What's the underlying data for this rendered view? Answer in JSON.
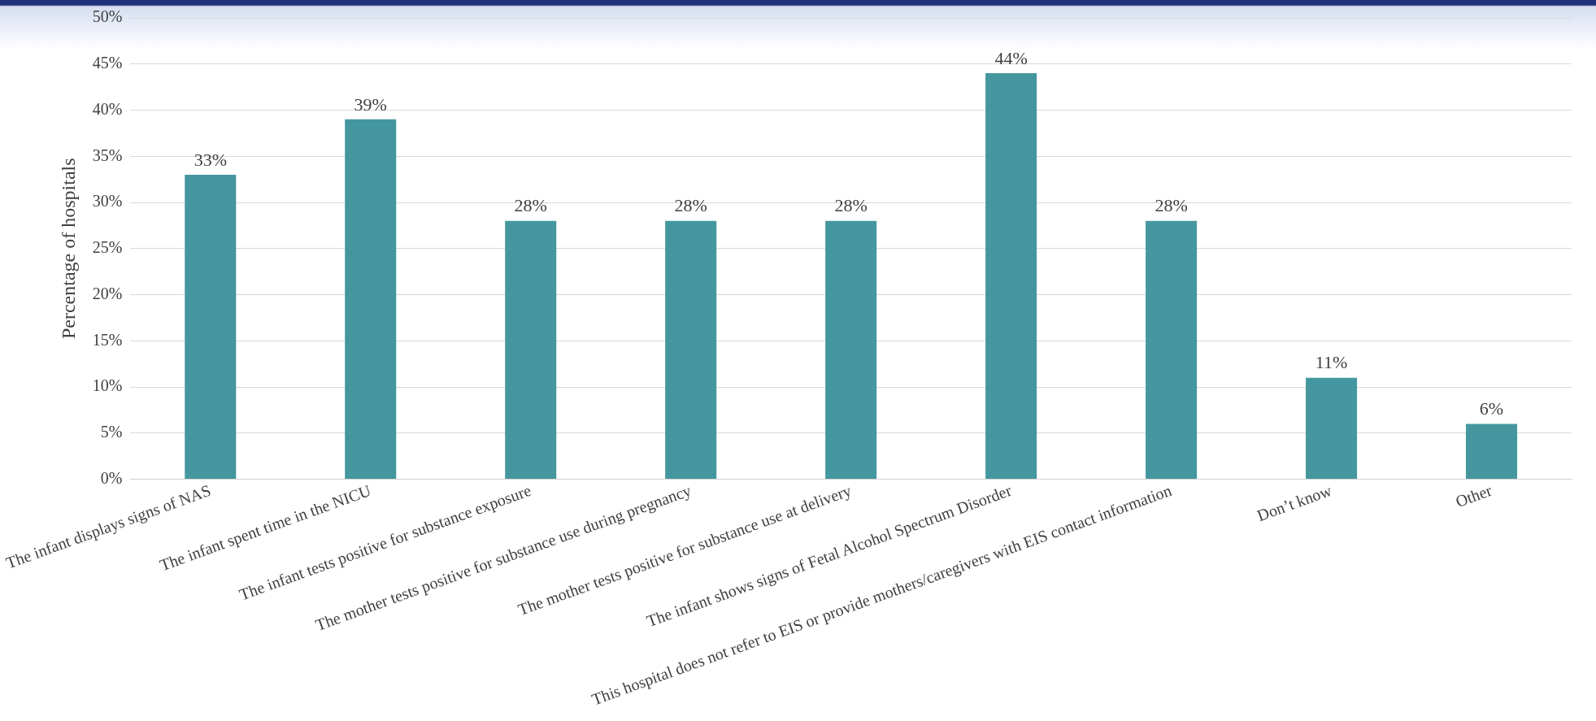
{
  "chart_data": {
    "type": "bar",
    "ylabel": "Percentage of hospitals",
    "categories": [
      "The infant displays signs of NAS",
      "The infant spent time in the NICU",
      "The infant tests positive for substance exposure",
      "The mother tests positive for substance use during pregnancy",
      "The mother tests positive for substance use at delivery",
      "The infant shows signs of Fetal Alcohol Spectrum Disorder",
      "This hospital does not refer to EIS or provide mothers/caregivers with EIS contact information",
      "Don’t know",
      "Other"
    ],
    "values": [
      33,
      39,
      28,
      28,
      28,
      44,
      28,
      11,
      6
    ],
    "color": "#44979f",
    "value_labels": [
      "33%",
      "39%",
      "28%",
      "28%",
      "28%",
      "44%",
      "28%",
      "11%",
      "6%"
    ],
    "ylim": [
      0,
      50
    ],
    "yticks": [
      {
        "value": 0,
        "label": "0%"
      },
      {
        "value": 5,
        "label": "5%"
      },
      {
        "value": 10,
        "label": "10%"
      },
      {
        "value": 15,
        "label": "15%"
      },
      {
        "value": 20,
        "label": "20%"
      },
      {
        "value": 25,
        "label": "25%"
      },
      {
        "value": 30,
        "label": "30%"
      },
      {
        "value": 35,
        "label": "35%"
      },
      {
        "value": 40,
        "label": "40%"
      },
      {
        "value": 45,
        "label": "45%"
      },
      {
        "value": 50,
        "label": "50%"
      }
    ],
    "grid": "y",
    "legend": false
  }
}
